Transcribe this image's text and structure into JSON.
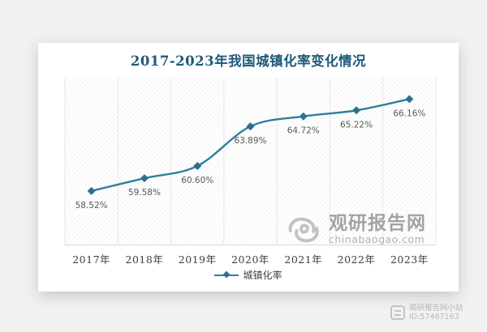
{
  "page": {
    "background": "#f1f1ef"
  },
  "chart_data": {
    "type": "line",
    "title": "2017-2023年我国城镇化率变化情况",
    "categories": [
      "2017年",
      "2018年",
      "2019年",
      "2020年",
      "2021年",
      "2022年",
      "2023年"
    ],
    "series": [
      {
        "name": "城镇化率",
        "values": [
          58.52,
          59.58,
          60.6,
          63.89,
          64.72,
          65.22,
          66.16
        ]
      }
    ],
    "data_labels": [
      "58.52%",
      "59.58%",
      "60.60%",
      "63.89%",
      "64.72%",
      "65.22%",
      "66.16%"
    ],
    "xlabel": "",
    "ylabel": "",
    "ylim": [
      54,
      68
    ],
    "grid": "vertical-column-separators",
    "legend_position": "bottom-center",
    "marker": "diamond",
    "colors": {
      "line": "#2e7f9e",
      "marker": "#2a7193",
      "data_label": "#595959",
      "axis_label": "#3d3d3d",
      "gridline": "#e6e6e4",
      "axis_line": "#d8d8d6",
      "title": "#1e5a7a",
      "plot_hatch": "#e9e9e7"
    }
  },
  "legend": {
    "label": "城镇化率"
  },
  "watermark": {
    "logo": "swirl-icon",
    "brand": "观研报告网",
    "domain": "chinabaogao.com"
  },
  "attribution": {
    "logo": "xiaozhan-logo-icon",
    "site": "观研报告网小站",
    "id_text": "ID:57467163"
  }
}
